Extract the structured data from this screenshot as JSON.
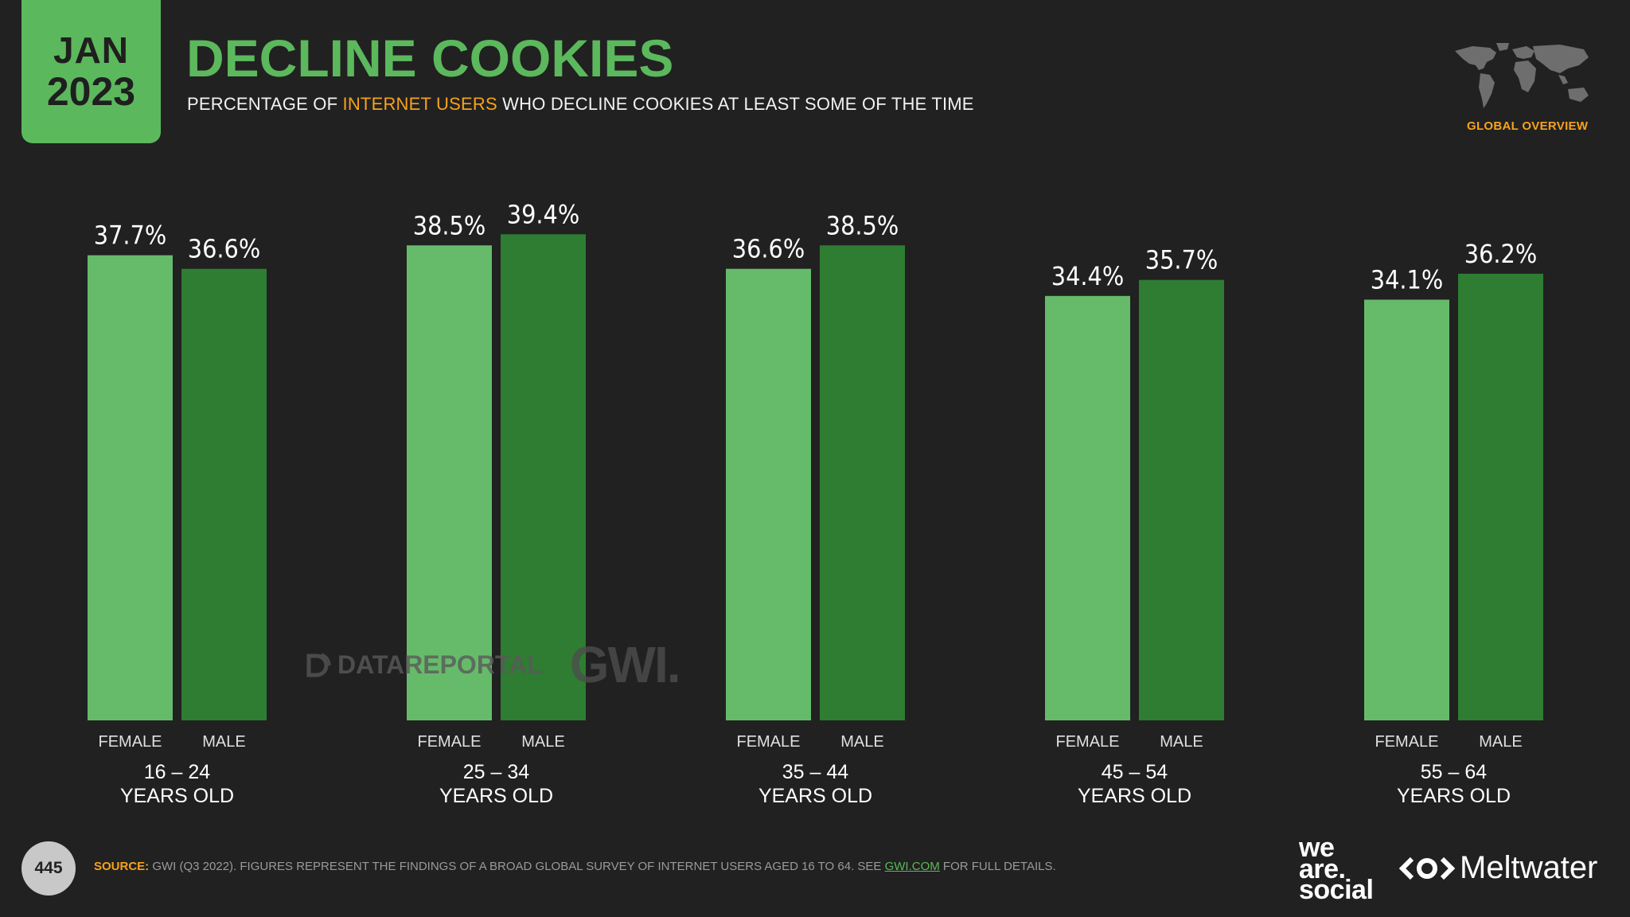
{
  "header": {
    "month": "JAN",
    "year": "2023",
    "title": "DECLINE COOKIES",
    "subtitle_prefix": "PERCENTAGE OF ",
    "subtitle_highlight": "INTERNET USERS",
    "subtitle_suffix": " WHO DECLINE COOKIES AT LEAST SOME OF THE TIME",
    "badge": "GLOBAL OVERVIEW"
  },
  "colors": {
    "background": "#212121",
    "accent_green": "#5cb85c",
    "female_bar": "#66bb6a",
    "male_bar": "#2e7d32",
    "highlight_orange": "#f7a21b"
  },
  "chart_data": {
    "type": "bar",
    "title": "DECLINE COOKIES",
    "ylabel": "",
    "xlabel": "",
    "ylim": [
      0,
      40
    ],
    "grid": false,
    "categories": [
      {
        "line1": "16 – 24",
        "line2": "YEARS OLD"
      },
      {
        "line1": "25 – 34",
        "line2": "YEARS OLD"
      },
      {
        "line1": "35 – 44",
        "line2": "YEARS OLD"
      },
      {
        "line1": "45 – 54",
        "line2": "YEARS OLD"
      },
      {
        "line1": "55 – 64",
        "line2": "YEARS OLD"
      }
    ],
    "series": [
      {
        "name": "FEMALE",
        "values": [
          37.7,
          38.5,
          36.6,
          34.4,
          34.1
        ],
        "labels": [
          "37.7%",
          "38.5%",
          "36.6%",
          "34.4%",
          "34.1%"
        ]
      },
      {
        "name": "MALE",
        "values": [
          36.6,
          39.4,
          38.5,
          35.7,
          36.2
        ],
        "labels": [
          "36.6%",
          "39.4%",
          "38.5%",
          "35.7%",
          "36.2%"
        ]
      }
    ]
  },
  "watermark": {
    "dataportal": "DATAREPORTAL",
    "gwi": "GWI."
  },
  "footer": {
    "page_number": "445",
    "source_label": "SOURCE:",
    "source_text": " GWI (Q3 2022). FIGURES REPRESENT THE FINDINGS OF A BROAD GLOBAL SURVEY OF INTERNET USERS AGED 16 TO 64. SEE ",
    "source_link": "GWI.COM",
    "source_suffix": " FOR FULL DETAILS.",
    "brand_we": "we",
    "brand_are": "are.",
    "brand_social": "social",
    "brand_meltwater": "Meltwater"
  }
}
